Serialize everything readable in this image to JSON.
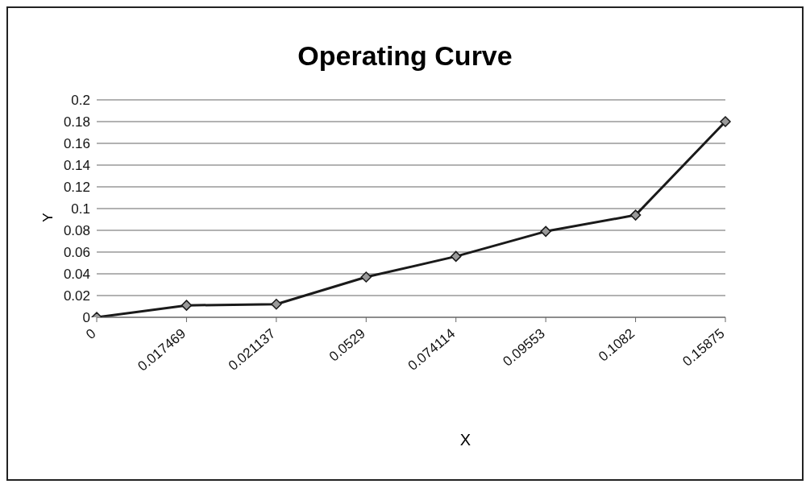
{
  "chart_data": {
    "type": "line",
    "title": "Operating Curve",
    "xlabel": "X",
    "ylabel": "Y",
    "categories": [
      "0",
      "0.017469",
      "0.021137",
      "0.0529",
      "0.074114",
      "0.09553",
      "0.1082",
      "0.15875"
    ],
    "series": [
      {
        "color": "#1a1a1a",
        "values": [
          0,
          0.011,
          0.012,
          0.037,
          0.056,
          0.079,
          0.094,
          0.18
        ]
      }
    ],
    "ylim": [
      0,
      0.2
    ],
    "yticks": [
      0,
      0.02,
      0.04,
      0.06,
      0.08,
      0.1,
      0.12,
      0.14,
      0.16,
      0.18,
      0.2
    ],
    "grid": "y",
    "marker": "diamond",
    "line_style": "solid",
    "legend": false
  }
}
